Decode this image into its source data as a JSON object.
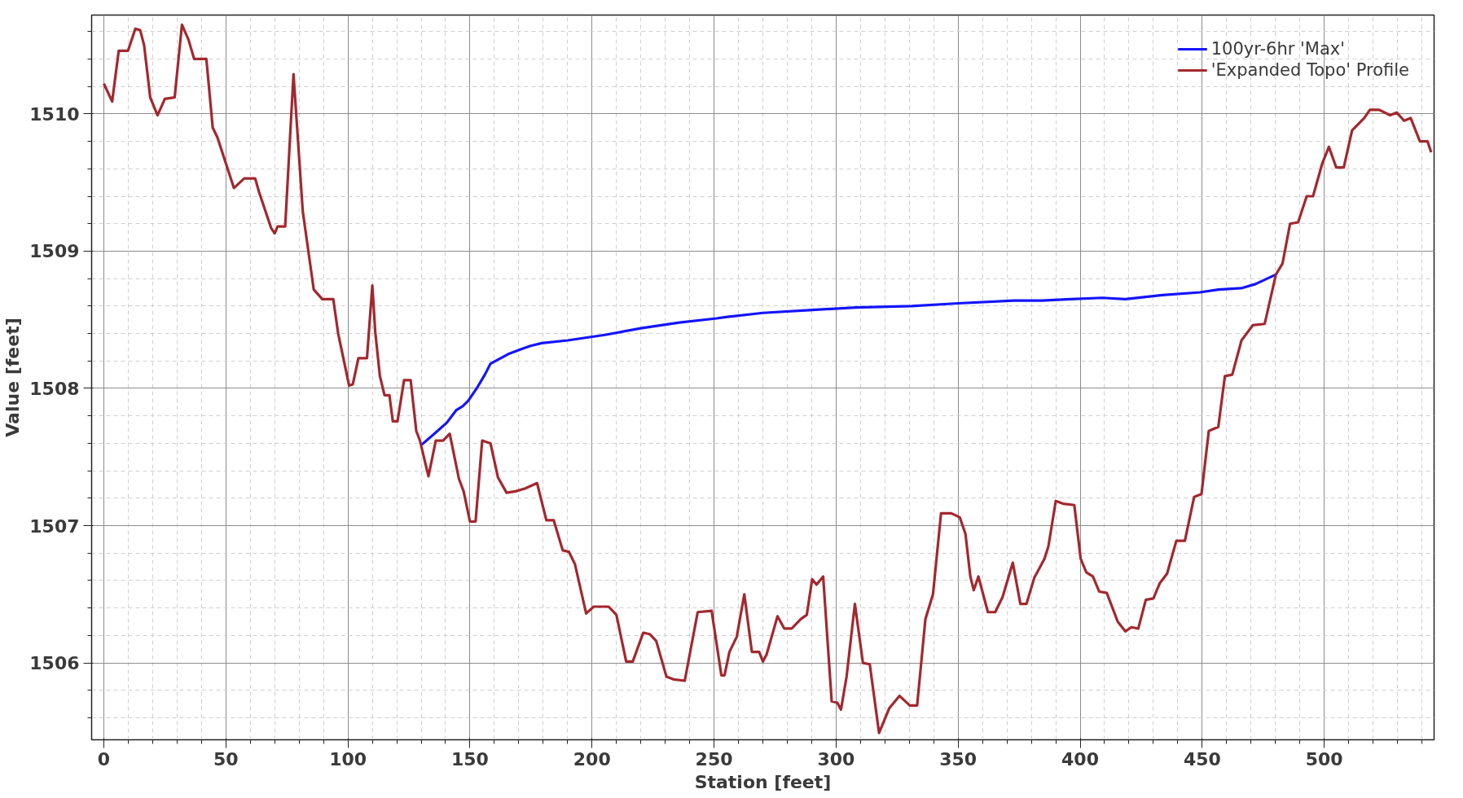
{
  "chart_data": {
    "type": "line",
    "xlabel": "Station [feet]",
    "ylabel": "Value [feet]",
    "xlim": [
      -5,
      545
    ],
    "ylim": [
      1505.44,
      1510.72
    ],
    "xticks": [
      0,
      50,
      100,
      150,
      200,
      250,
      300,
      350,
      400,
      450,
      500
    ],
    "yticks": [
      1506,
      1507,
      1508,
      1509,
      1510
    ],
    "grid": true,
    "legend": "top right",
    "line_style": "solid",
    "marker": "none",
    "series": [
      {
        "name": "100yr-6hr 'Max'",
        "color": "#1414ff",
        "x": [
          130.2,
          134.8,
          140.5,
          144.3,
          147,
          149.3,
          153.1,
          156.1,
          158.4,
          161.5,
          165.7,
          171.7,
          174.8,
          179.4,
          190,
          205.3,
          220.5,
          235.7,
          251,
          254.8,
          270,
          289,
          308,
          331,
          350,
          372.8,
          384.2,
          396,
          409,
          418.5,
          433.7,
          449,
          456.6,
          466,
          471.8,
          480.2
        ],
        "values": [
          1507.59,
          1507.66,
          1507.75,
          1507.84,
          1507.87,
          1507.91,
          1508.01,
          1508.1,
          1508.18,
          1508.21,
          1508.25,
          1508.29,
          1508.31,
          1508.33,
          1508.35,
          1508.39,
          1508.44,
          1508.48,
          1508.51,
          1508.52,
          1508.55,
          1508.57,
          1508.59,
          1508.6,
          1508.62,
          1508.64,
          1508.64,
          1508.65,
          1508.66,
          1508.65,
          1508.68,
          1508.7,
          1508.72,
          1508.73,
          1508.76,
          1508.83
        ]
      },
      {
        "name": "'Expanded Topo' Profile",
        "color": "#a3282e",
        "x": [
          0,
          3.4,
          6.1,
          9.9,
          12.9,
          14.9,
          16.5,
          19,
          22,
          25,
          29,
          32,
          34.7,
          37,
          42,
          44.6,
          46.5,
          53.3,
          57.5,
          62,
          63.6,
          68.5,
          70,
          71.2,
          74.3,
          77.7,
          81.5,
          86,
          89.5,
          94,
          96,
          100.5,
          102,
          104.3,
          107.8,
          110,
          111.2,
          113.1,
          115,
          117,
          118.4,
          120.3,
          123,
          125.7,
          128,
          129.5,
          133,
          136,
          139,
          141.7,
          145.5,
          147.4,
          150,
          152.3,
          155,
          158.4,
          161.5,
          165,
          168.7,
          172.5,
          177.5,
          181.3,
          184.3,
          188,
          190.5,
          193,
          197.6,
          200.7,
          206.8,
          210,
          214,
          216.7,
          221,
          223.6,
          226.3,
          230.5,
          233.4,
          238,
          243.3,
          249,
          253,
          254.3,
          256.3,
          259.3,
          262.4,
          265.5,
          268.5,
          270,
          271.5,
          276,
          278.8,
          281.8,
          285.6,
          288,
          290.2,
          292,
          294.7,
          298.2,
          300.5,
          302,
          304.3,
          307.7,
          311,
          313.8,
          317.6,
          321.8,
          326,
          330.2,
          333.2,
          336.6,
          339.7,
          343,
          347.2,
          350.7,
          353,
          355,
          356.4,
          358.3,
          362.2,
          365.2,
          368.2,
          372.4,
          375.5,
          378,
          381.2,
          385.4,
          387,
          390,
          393,
          397.6,
          400.2,
          402.5,
          405.2,
          407.8,
          410.9,
          415.4,
          418.5,
          421,
          423.8,
          426.9,
          430,
          432.6,
          435.6,
          439.4,
          442.9,
          446.7,
          449.7,
          452.7,
          456.6,
          459.3,
          462.3,
          466.1,
          470.7,
          475.6,
          480.2,
          482.9,
          486,
          489.3,
          492.8,
          495.4,
          499.2,
          501.9,
          504.9,
          508,
          511.4,
          516.4,
          518.7,
          522.5,
          527,
          529.7,
          532.7,
          535.4,
          539.2,
          542.3,
          543.8
        ],
        "values": [
          1510.22,
          1510.09,
          1510.46,
          1510.46,
          1510.62,
          1510.61,
          1510.5,
          1510.12,
          1509.99,
          1510.11,
          1510.12,
          1510.65,
          1510.54,
          1510.4,
          1510.4,
          1509.9,
          1509.83,
          1509.46,
          1509.53,
          1509.53,
          1509.43,
          1509.17,
          1509.13,
          1509.18,
          1509.18,
          1510.29,
          1509.29,
          1508.72,
          1508.65,
          1508.65,
          1508.4,
          1508.02,
          1508.03,
          1508.22,
          1508.22,
          1508.75,
          1508.41,
          1508.09,
          1507.95,
          1507.95,
          1507.76,
          1507.76,
          1508.06,
          1508.06,
          1507.69,
          1507.62,
          1507.36,
          1507.62,
          1507.62,
          1507.67,
          1507.34,
          1507.25,
          1507.03,
          1507.03,
          1507.62,
          1507.6,
          1507.35,
          1507.24,
          1507.25,
          1507.27,
          1507.31,
          1507.04,
          1507.04,
          1506.82,
          1506.81,
          1506.72,
          1506.36,
          1506.41,
          1506.41,
          1506.35,
          1506.01,
          1506.01,
          1506.22,
          1506.21,
          1506.16,
          1505.9,
          1505.88,
          1505.87,
          1506.37,
          1506.38,
          1505.91,
          1505.91,
          1506.08,
          1506.19,
          1506.5,
          1506.08,
          1506.08,
          1506.01,
          1506.06,
          1506.34,
          1506.25,
          1506.25,
          1506.32,
          1506.35,
          1506.61,
          1506.57,
          1506.63,
          1505.72,
          1505.71,
          1505.66,
          1505.9,
          1506.43,
          1506.0,
          1505.99,
          1505.49,
          1505.67,
          1505.76,
          1505.69,
          1505.69,
          1506.32,
          1506.5,
          1507.09,
          1507.09,
          1507.06,
          1506.94,
          1506.63,
          1506.53,
          1506.63,
          1506.37,
          1506.37,
          1506.48,
          1506.73,
          1506.43,
          1506.43,
          1506.62,
          1506.76,
          1506.85,
          1507.18,
          1507.16,
          1507.15,
          1506.76,
          1506.66,
          1506.63,
          1506.52,
          1506.51,
          1506.3,
          1506.23,
          1506.26,
          1506.25,
          1506.46,
          1506.47,
          1506.58,
          1506.65,
          1506.89,
          1506.89,
          1507.21,
          1507.23,
          1507.69,
          1507.72,
          1508.09,
          1508.1,
          1508.35,
          1508.46,
          1508.47,
          1508.83,
          1508.91,
          1509.2,
          1509.21,
          1509.4,
          1509.4,
          1509.64,
          1509.76,
          1509.61,
          1509.61,
          1509.88,
          1509.97,
          1510.03,
          1510.03,
          1509.99,
          1510.01,
          1509.95,
          1509.97,
          1509.8,
          1509.8,
          1509.72
        ]
      }
    ]
  }
}
